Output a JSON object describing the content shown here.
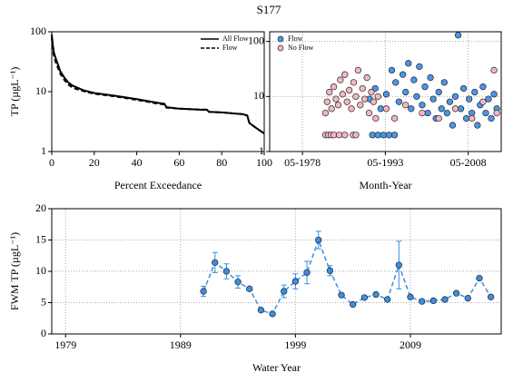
{
  "title": "S177",
  "chart_data": [
    {
      "type": "line",
      "xlabel": "Percent Exceedance",
      "ylabel": "TP (µgL⁻¹)",
      "xlim": [
        0,
        100
      ],
      "xticks": [
        0,
        20,
        40,
        60,
        80,
        100
      ],
      "ylim": [
        1,
        100
      ],
      "yticks": [
        1,
        10,
        100
      ],
      "ylog": true,
      "grid": false,
      "legend": "upper right",
      "x": [
        0,
        0.5,
        1,
        2,
        4,
        6,
        8,
        10,
        15,
        20,
        30,
        40,
        50,
        53,
        54,
        60,
        70,
        73,
        74,
        80,
        90,
        92,
        93,
        96,
        100
      ],
      "series": [
        {
          "name": "All Flow",
          "color": "#000000",
          "style": "solid",
          "values": [
            90,
            60,
            45,
            35,
            22,
            17,
            14,
            12.5,
            10.5,
            9.5,
            8.5,
            7.5,
            6.5,
            6.3,
            5.5,
            5.2,
            5,
            5,
            4.6,
            4.5,
            4.2,
            4,
            3,
            2.5,
            2
          ]
        },
        {
          "name": "Flow",
          "color": "#000000",
          "style": "dashed",
          "values": [
            80,
            50,
            40,
            30,
            20,
            15.5,
            13,
            11.5,
            10.2,
            9.2,
            8.3,
            7.3,
            6.3,
            6.1,
            5.4,
            5.2,
            5,
            5,
            4.6,
            4.5,
            4.2,
            4,
            3,
            2.5,
            2
          ]
        }
      ]
    },
    {
      "type": "scatter",
      "xlabel": "Month-Year",
      "xlim": [
        1972.4,
        2014.3
      ],
      "xticks": [
        {
          "value": 1978.33,
          "label": "05-1978"
        },
        {
          "value": 1993.33,
          "label": "05-1993"
        },
        {
          "value": 2008.33,
          "label": "05-2008"
        }
      ],
      "ylim": [
        1,
        150
      ],
      "yticks": [
        1,
        10,
        100
      ],
      "ylog": true,
      "grid": true,
      "legend": "upper left",
      "series": [
        {
          "name": "Flow",
          "color": "#4a97e4",
          "x": [
            1991,
            1992,
            1993,
            1994,
            1995,
            1990.5,
            1991.5,
            1992.5,
            1993.5,
            1994.5,
            1995.2,
            1995.8,
            1996.5,
            1997,
            1997.5,
            1998,
            1998.5,
            1999,
            1999.5,
            2000,
            2000.5,
            2001,
            2001.5,
            2002,
            2002.5,
            2003,
            2003.5,
            2004,
            2004.5,
            2005,
            2005.5,
            2006,
            2006.5,
            2007,
            2007.5,
            2008,
            2008.5,
            2009,
            2009.5,
            2010,
            2010.5,
            2011,
            2011.5,
            2012,
            2012.5,
            2013,
            2013.5
          ],
          "values": [
            2,
            2,
            2,
            2,
            2,
            9,
            14,
            6,
            11,
            30,
            18,
            8,
            25,
            12,
            40,
            6,
            20,
            10,
            35,
            7,
            15,
            5,
            22,
            9,
            4,
            12,
            6,
            18,
            5,
            8,
            3,
            10,
            130,
            6,
            14,
            4,
            9,
            5,
            12,
            3,
            7,
            15,
            5,
            9,
            4,
            11,
            6
          ]
        },
        {
          "name": "No Flow",
          "color": "#f4b8b8",
          "x": [
            1982.5,
            1983,
            1983.5,
            1984,
            1985,
            1986,
            1987.5,
            1988,
            1982.5,
            1982.8,
            1983.2,
            1983.6,
            1984,
            1984.4,
            1984.8,
            1985.2,
            1985.6,
            1986,
            1986.4,
            1986.8,
            1987.2,
            1987.6,
            1988,
            1988.4,
            1988.8,
            1989.2,
            1989.6,
            1990,
            1990.4,
            1990.8,
            1991.2,
            1991.6,
            1992,
            1993.5,
            1995,
            1997,
            2000,
            2003,
            2006,
            2009,
            2011,
            2013,
            2013.5
          ],
          "values": [
            2,
            2,
            2,
            2,
            2,
            2,
            2,
            2,
            5,
            8,
            12,
            6,
            15,
            9,
            7,
            20,
            11,
            25,
            8,
            13,
            6,
            18,
            10,
            30,
            7,
            14,
            9,
            22,
            5,
            12,
            8,
            4,
            10,
            6,
            4,
            7,
            5,
            4,
            6,
            4,
            8,
            30,
            5
          ]
        }
      ]
    },
    {
      "type": "line",
      "xlabel": "Water Year",
      "ylabel": "FWM TP (µgL⁻¹)",
      "xlim": [
        1977.8,
        2016.9
      ],
      "xticks": [
        1979,
        1989,
        1999,
        2009
      ],
      "ylim": [
        0,
        20
      ],
      "yticks": [
        0,
        5,
        10,
        15,
        20
      ],
      "ylog": false,
      "grid": true,
      "markers": true,
      "x": [
        1991,
        1992,
        1993,
        1994,
        1995,
        1996,
        1997,
        1998,
        1999,
        2000,
        2001,
        2002,
        2003,
        2004,
        2005,
        2006,
        2007,
        2008,
        2009,
        2010,
        2011,
        2012,
        2013,
        2014,
        2015,
        2016
      ],
      "series": [
        {
          "color": "#3a8ee0",
          "style": "dashed",
          "values": [
            6.8,
            11.4,
            10.0,
            8.3,
            7.2,
            3.8,
            3.2,
            6.8,
            8.4,
            9.8,
            15.0,
            10.1,
            6.2,
            4.7,
            5.8,
            6.3,
            5.5,
            11.0,
            5.9,
            5.2,
            5.3,
            5.5,
            6.5,
            5.7,
            8.9,
            5.9
          ],
          "errors": [
            0.8,
            1.6,
            1.2,
            1.0,
            null,
            null,
            null,
            1.0,
            1.2,
            1.8,
            1.4,
            0.8,
            null,
            null,
            null,
            null,
            null,
            3.8,
            null,
            null,
            null,
            null,
            null,
            null,
            null,
            null
          ]
        }
      ]
    }
  ]
}
